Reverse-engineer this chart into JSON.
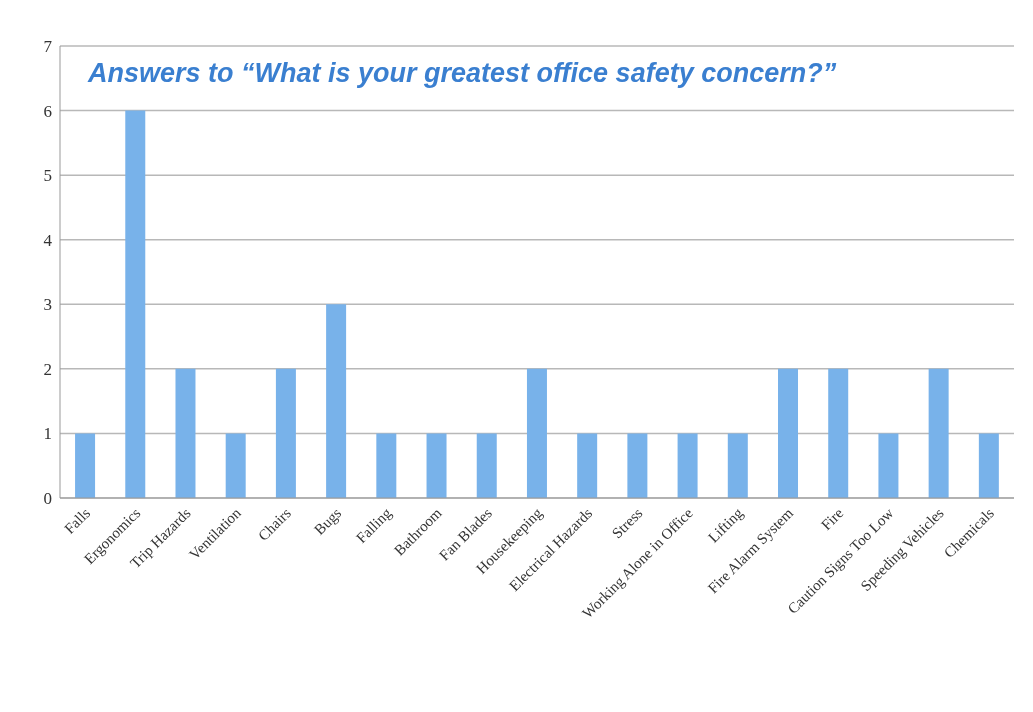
{
  "chart_data": {
    "type": "bar",
    "title": "Answers to “What is your greatest office safety concern?”",
    "categories": [
      "Falls",
      "Ergonomics",
      "Trip Hazards",
      "Ventilation",
      "Chairs",
      "Bugs",
      "Falling",
      "Bathroom",
      "Fan Blades",
      "Housekeeping",
      "Electrical Hazards",
      "Stress",
      "Working Alone in Office",
      "Lifting",
      "Fire Alarm System",
      "Fire",
      "Caution Signs Too Low",
      "Speeding Vehicles",
      "Chemicals"
    ],
    "values": [
      1,
      6,
      2,
      1,
      2,
      3,
      1,
      1,
      1,
      2,
      1,
      1,
      1,
      1,
      2,
      2,
      1,
      2,
      1
    ],
    "color": "#78b2ea",
    "ylim": [
      0,
      7
    ],
    "yticks": [
      0,
      1,
      2,
      3,
      4,
      5,
      6,
      7
    ],
    "grid": "y"
  }
}
